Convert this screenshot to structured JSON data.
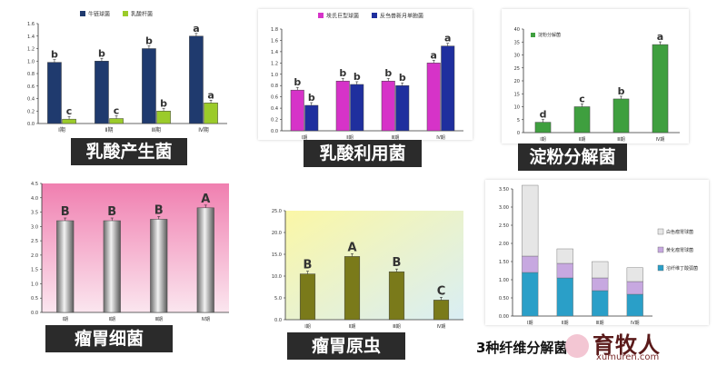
{
  "colors": {
    "navy": "#1f3a6e",
    "lime": "#9bcb2a",
    "magenta": "#d633c8",
    "blue": "#1f2f9e",
    "green": "#3f9f3f",
    "gray_bar": "#8a8a8a",
    "olive": "#7a7a1a",
    "teal": "#2a9fc8",
    "lavender": "#c7a8e0",
    "light_gray": "#e6e6e6",
    "pink_bg": "#f28bb8",
    "yellow_bg": "#f8f5b0",
    "cap_dark": "#2b2b2b"
  },
  "captions": {
    "p1": "乳酸产生菌",
    "p2": "乳酸利用菌",
    "p3": "淀粉分解菌",
    "p4": "瘤胃细菌",
    "p5": "瘤胃原虫",
    "p6": "3种纤维分解菌"
  },
  "watermark": {
    "title": "育牧人",
    "sub": "xumuren.com"
  },
  "chart_data": [
    {
      "id": "p1",
      "type": "bar",
      "categories": [
        "Ⅰ期",
        "Ⅱ期",
        "Ⅲ期",
        "Ⅳ期"
      ],
      "ylim": [
        0,
        1.6
      ],
      "yticks": [
        "0.0",
        "0.2",
        "0.4",
        "0.6",
        "0.8",
        "1.0",
        "1.2",
        "1.4",
        "1.6"
      ],
      "legend": "top-center",
      "series": [
        {
          "name": "牛链球菌",
          "color": "#1f3a6e",
          "values": [
            0.98,
            1.0,
            1.2,
            1.4
          ],
          "labels": [
            "b",
            "b",
            "b",
            "a"
          ]
        },
        {
          "name": "乳酸杆菌",
          "color": "#9bcb2a",
          "values": [
            0.07,
            0.08,
            0.2,
            0.33
          ],
          "labels": [
            "c",
            "c",
            "b",
            "a"
          ]
        }
      ]
    },
    {
      "id": "p2",
      "type": "bar",
      "categories": [
        "Ⅰ期",
        "Ⅱ期",
        "Ⅲ期",
        "Ⅳ期"
      ],
      "ylim": [
        0,
        1.8
      ],
      "yticks": [
        "0.0",
        "0.2",
        "0.4",
        "0.6",
        "0.8",
        "1.0",
        "1.2",
        "1.4",
        "1.6",
        "1.8"
      ],
      "legend": "top-center",
      "series": [
        {
          "name": "埃氏巨型球菌",
          "color": "#d633c8",
          "values": [
            0.72,
            0.88,
            0.88,
            1.2
          ],
          "labels": [
            "b",
            "b",
            "b",
            "a"
          ]
        },
        {
          "name": "反刍兽新月单胞菌",
          "color": "#1f2f9e",
          "values": [
            0.45,
            0.82,
            0.8,
            1.5
          ],
          "labels": [
            "b",
            "b",
            "b",
            "a"
          ]
        }
      ]
    },
    {
      "id": "p3",
      "type": "bar",
      "categories": [
        "Ⅰ期",
        "Ⅱ期",
        "Ⅲ期",
        "Ⅳ期"
      ],
      "ylim": [
        0,
        40
      ],
      "yticks": [
        "0",
        "5",
        "10",
        "15",
        "20",
        "25",
        "30",
        "35",
        "40"
      ],
      "legend": "top-left",
      "series": [
        {
          "name": "淀粉分解菌",
          "color": "#3f9f3f",
          "values": [
            4,
            10,
            13,
            34
          ],
          "labels": [
            "d",
            "c",
            "b",
            "a"
          ]
        }
      ]
    },
    {
      "id": "p4",
      "type": "bar",
      "categories": [
        "Ⅰ期",
        "Ⅱ期",
        "Ⅲ期",
        "Ⅳ期"
      ],
      "ylim": [
        0,
        4.5
      ],
      "yticks": [
        "0.0",
        "0.5",
        "1.0",
        "1.5",
        "2.0",
        "2.5",
        "3.0",
        "3.5",
        "4.0",
        "4.5"
      ],
      "series": [
        {
          "values": [
            3.2,
            3.2,
            3.25,
            3.65
          ],
          "labels": [
            "B",
            "B",
            "B",
            "A"
          ]
        }
      ]
    },
    {
      "id": "p5",
      "type": "bar",
      "categories": [
        "Ⅰ期",
        "Ⅱ期",
        "Ⅲ期",
        "Ⅳ期"
      ],
      "ylim": [
        0,
        25
      ],
      "yticks": [
        "0.0",
        "5.0",
        "10.0",
        "15.0",
        "20.0",
        "25.0"
      ],
      "series": [
        {
          "values": [
            10.5,
            14.5,
            11,
            4.5
          ],
          "labels": [
            "B",
            "A",
            "B",
            "C"
          ]
        }
      ]
    },
    {
      "id": "p6",
      "type": "bar",
      "stacked": true,
      "categories": [
        "Ⅰ期",
        "Ⅱ期",
        "Ⅲ期",
        "Ⅳ期"
      ],
      "ylim": [
        0,
        3.5
      ],
      "yticks": [
        "0.00",
        "0.50",
        "1.00",
        "1.50",
        "2.00",
        "2.50",
        "3.00",
        "3.50"
      ],
      "legend": "right",
      "series": [
        {
          "name": "溶纤维丁酸弧菌",
          "color": "#2a9fc8",
          "values": [
            1.2,
            1.05,
            0.7,
            0.6
          ]
        },
        {
          "name": "黄化瘤胃球菌",
          "color": "#c7a8e0",
          "values": [
            0.45,
            0.4,
            0.35,
            0.35
          ]
        },
        {
          "name": "白色瘤胃球菌",
          "color": "#e6e6e6",
          "values": [
            1.95,
            0.4,
            0.45,
            0.38
          ]
        }
      ]
    }
  ]
}
